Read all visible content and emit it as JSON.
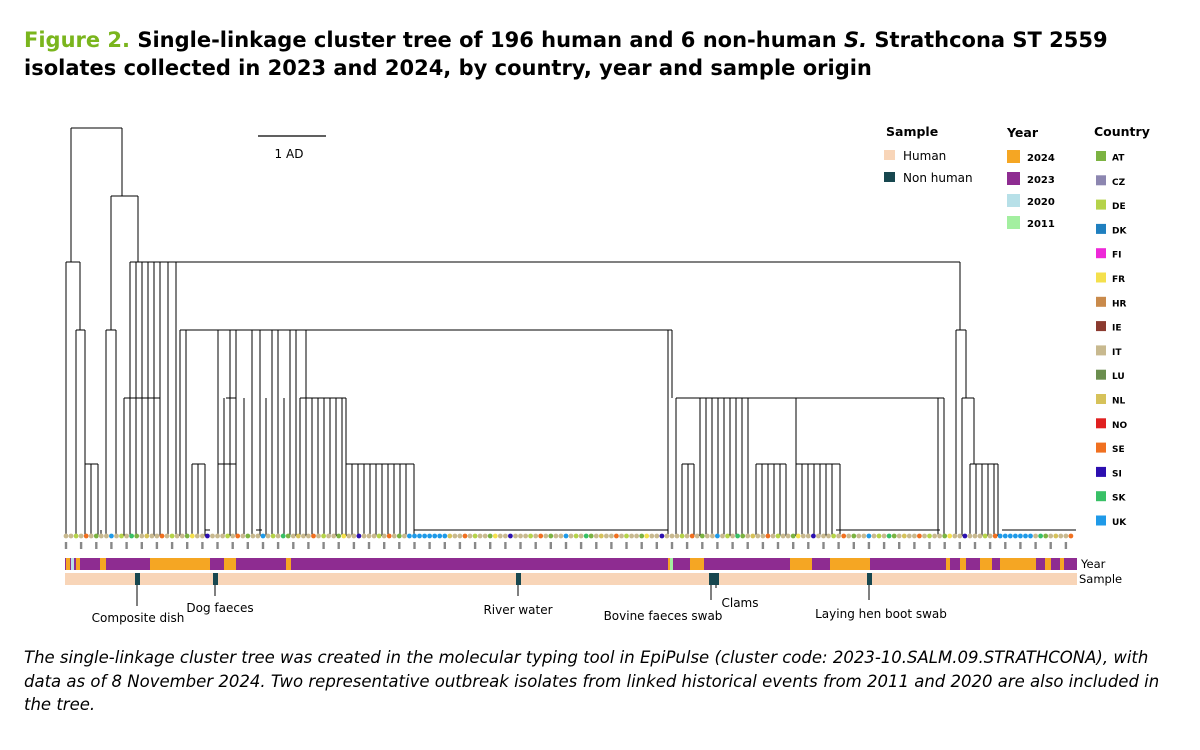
{
  "figure": {
    "label": "Figure 2.",
    "title_pre": "Single-linkage cluster tree of 196 human and 6 non-human ",
    "title_species": "S.",
    "title_post": " Strathcona ST 2559 isolates collected in 2023 and 2024, by country, year and sample origin"
  },
  "scale_bar": {
    "label": "1 AD"
  },
  "legend": {
    "sample": {
      "title": "Sample",
      "items": [
        {
          "label": "Human",
          "color": "#f8d5b8"
        },
        {
          "label": "Non human",
          "color": "#17474f"
        }
      ]
    },
    "year": {
      "title": "Year",
      "items": [
        {
          "label": "2024",
          "color": "#f5a623"
        },
        {
          "label": "2023",
          "color": "#8e2c91"
        },
        {
          "label": "2020",
          "color": "#b7e0e8"
        },
        {
          "label": "2011",
          "color": "#a3efa0"
        }
      ]
    },
    "country": {
      "title": "Country",
      "items": [
        {
          "label": "AT",
          "color": "#7cb342"
        },
        {
          "label": "CZ",
          "color": "#8c86b0"
        },
        {
          "label": "DE",
          "color": "#b5d34a"
        },
        {
          "label": "DK",
          "color": "#1f7fbf"
        },
        {
          "label": "FI",
          "color": "#ee28d8"
        },
        {
          "label": "FR",
          "color": "#f4e04d"
        },
        {
          "label": "HR",
          "color": "#c98a4b"
        },
        {
          "label": "IE",
          "color": "#8b3a2f"
        },
        {
          "label": "IT",
          "color": "#c8b98f"
        },
        {
          "label": "LU",
          "color": "#6b8e4e"
        },
        {
          "label": "NL",
          "color": "#d6c25a"
        },
        {
          "label": "NO",
          "color": "#e02020"
        },
        {
          "label": "SE",
          "color": "#f07020"
        },
        {
          "label": "SI",
          "color": "#2c0fb0"
        },
        {
          "label": "SK",
          "color": "#38c066"
        },
        {
          "label": "UK",
          "color": "#1f9ae8"
        }
      ]
    }
  },
  "strip_labels": {
    "year": "Year",
    "sample": "Sample"
  },
  "annotations": [
    {
      "label": "Composite dish"
    },
    {
      "label": "Dog faeces"
    },
    {
      "label": "River water"
    },
    {
      "label": "Bovine faeces swab"
    },
    {
      "label": "Clams"
    },
    {
      "label": "Laying hen boot swab"
    }
  ],
  "caption": "The single-linkage cluster tree was created in the molecular typing tool in EpiPulse (cluster code: 2023-10.SALM.09.STRATHCONA), with data as of 8 November 2024. Two representative outbreak isolates from linked historical events from 2011 and 2020 are also included in the tree."
}
